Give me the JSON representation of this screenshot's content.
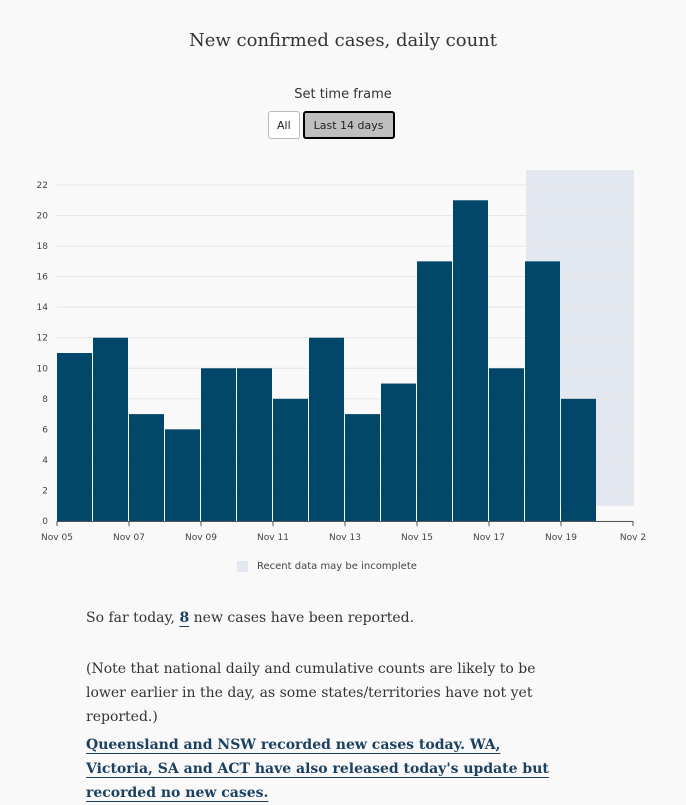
{
  "title": "New confirmed cases, daily count",
  "time_frame": {
    "label": "Set time frame",
    "options": [
      "All",
      "Last 14 days"
    ],
    "selected": "Last 14 days"
  },
  "chart_data": {
    "type": "bar",
    "categories": [
      "Nov 05",
      "Nov 06",
      "Nov 07",
      "Nov 08",
      "Nov 09",
      "Nov 10",
      "Nov 11",
      "Nov 12",
      "Nov 13",
      "Nov 14",
      "Nov 15",
      "Nov 16",
      "Nov 17",
      "Nov 18",
      "Nov 19"
    ],
    "values": [
      11,
      12,
      7,
      6,
      10,
      10,
      8,
      12,
      7,
      9,
      17,
      21,
      10,
      17,
      8
    ],
    "x_tick_labels": [
      "Nov 05",
      "Nov 07",
      "Nov 09",
      "Nov 11",
      "Nov 13",
      "Nov 15",
      "Nov 17",
      "Nov 19",
      "Nov 2"
    ],
    "y_ticks": [
      0,
      2,
      4,
      6,
      8,
      10,
      12,
      14,
      16,
      18,
      20,
      22
    ],
    "ylim": [
      0,
      22
    ],
    "bar_color": "#02476a",
    "incomplete_shade_color": "#e3e7f0",
    "incomplete_from": "Nov 18",
    "grid": true,
    "legend": {
      "label": "Recent data may be incomplete",
      "placement": "bottom-center"
    }
  },
  "summary": {
    "prefix": "So far today, ",
    "count": "8",
    "suffix": " new cases have been reported."
  },
  "note": "(Note that national daily and cumulative counts are likely to be lower earlier in the day, as some states/territories have not yet reported.)",
  "update_link": "Queensland and NSW recorded new cases today. WA, Victoria, SA and ACT have also released today's update but recorded no new cases."
}
